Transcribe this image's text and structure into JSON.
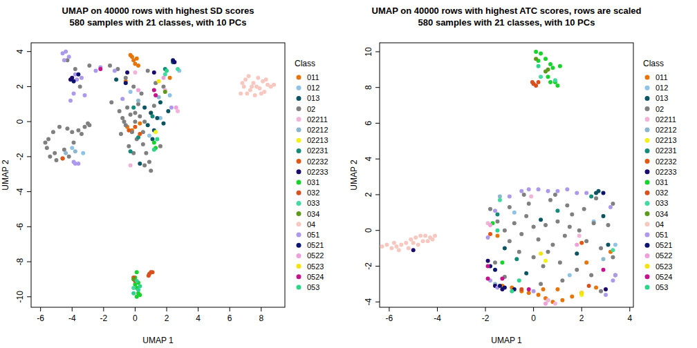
{
  "chart_data": [
    {
      "type": "scatter",
      "title": "UMAP on 40000 rows with highest SD scores",
      "subtitle": "580 samples with 21 classes, with 10 PCs",
      "x_label": "UMAP 1",
      "y_label": "UMAP 2",
      "legend_title": "Class",
      "legend": "right",
      "marker": "circle",
      "xlim": [
        -6.6,
        9.5
      ],
      "ylim": [
        -10.6,
        4.5
      ],
      "xticks": [
        -6,
        -4,
        -2,
        0,
        2,
        4,
        6,
        8
      ],
      "yticks": [
        -10,
        -8,
        -6,
        -4,
        -2,
        0,
        2,
        4
      ],
      "series": [
        {
          "name": "011",
          "color": "#E6750B",
          "x": [
            -0.2,
            -0.1,
            0.1,
            0.0,
            -0.3,
            0.2,
            -0.5,
            -0.2,
            0.3,
            -0.6,
            1.0,
            2.2
          ],
          "y": [
            3.7,
            3.5,
            3.6,
            3.3,
            3.8,
            3.2,
            -0.3,
            -0.5,
            -0.1,
            2.3,
            0.5,
            2.5
          ]
        },
        {
          "name": "012",
          "color": "#8FC3E6",
          "x": [
            -4.0,
            -3.3,
            1.6,
            2.2,
            0.9,
            -0.3,
            2.8
          ],
          "y": [
            -1.5,
            -1.8,
            0.2,
            1.5,
            -0.8,
            1.7,
            2.9
          ]
        },
        {
          "name": "013",
          "color": "#0B5563",
          "x": [
            1.0,
            1.4,
            1.8,
            1.2,
            0.6,
            2.1,
            1.6,
            0.8,
            2.4,
            1.1,
            -1.2,
            0.3
          ],
          "y": [
            0.5,
            0.2,
            -0.1,
            -0.5,
            0.8,
            0.6,
            1.1,
            -0.2,
            3.4,
            -1.0,
            2.4,
            -2.4
          ]
        },
        {
          "name": "02",
          "color": "#808080",
          "x": [
            -5.5,
            -5.6,
            -5.4,
            -5.0,
            -4.6,
            -4.2,
            -5.2,
            -4.8,
            -4.3,
            -4.0,
            -3.6,
            -3.2,
            -3.0,
            -2.9,
            -5.7,
            -5.1,
            -4.5,
            -3.9,
            -3.4,
            -4.3,
            -3.8,
            -2.9,
            -3.5,
            -1.6,
            -1.1,
            -1.0,
            -0.8,
            -0.5,
            -0.3,
            -0.6,
            0.0,
            0.3,
            -0.2,
            0.1,
            -0.4,
            0.5,
            0.7,
            0.9,
            1.0,
            0.6,
            -0.1,
            -0.7,
            0.2,
            0.5,
            1.2,
            -1.5,
            -0.1,
            0.4,
            -0.6,
            0.8,
            1.3,
            1.8,
            1.6,
            -0.9,
            0.0,
            0.6
          ],
          "y": [
            -1.0,
            -1.5,
            -2.0,
            -2.2,
            -2.1,
            -2.0,
            -0.6,
            -0.3,
            -0.4,
            -0.6,
            -0.5,
            -0.3,
            -0.1,
            -0.2,
            -1.2,
            -1.8,
            -1.6,
            -1.2,
            -0.7,
            3.5,
            3.0,
            3.2,
            2.0,
            3.2,
            3.0,
            0.6,
            0.2,
            0.8,
            0.4,
            -0.2,
            0.0,
            0.3,
            -0.6,
            -1.0,
            -1.4,
            -1.3,
            -1.8,
            -2.3,
            -2.8,
            -2.5,
            -1.8,
            0.0,
            1.0,
            -0.6,
            0.9,
            1.1,
            2.0,
            1.6,
            2.5,
            2.9,
            2.2,
            2.0,
            -1.4,
            -0.7,
            0.5,
            0.0
          ]
        },
        {
          "name": "02211",
          "color": "#F2B3D9",
          "x": [
            2.7,
            1.9,
            -0.3,
            0.0
          ],
          "y": [
            0.6,
            1.8,
            -2.5,
            2.8
          ]
        },
        {
          "name": "02212",
          "color": "#8DB6CF",
          "x": [
            -4.4,
            -3.8,
            1.5,
            0.2
          ],
          "y": [
            -1.8,
            -1.7,
            1.4,
            1.2
          ]
        },
        {
          "name": "02213",
          "color": "#F2F21A",
          "x": [
            1.3
          ],
          "y": [
            -0.6
          ]
        },
        {
          "name": "02231",
          "color": "#138A7A",
          "x": [
            -0.3,
            0.2,
            1.1,
            -0.1,
            1.9
          ],
          "y": [
            -1.7,
            -0.9,
            0.3,
            0.8,
            3.0
          ]
        },
        {
          "name": "02232",
          "color": "#E25813",
          "x": [
            -0.4,
            0.0,
            -4.6,
            0.3
          ],
          "y": [
            -0.5,
            -0.3,
            -2.1,
            -0.7
          ]
        },
        {
          "name": "02233",
          "color": "#1A0A6E",
          "x": [
            -4.1,
            -4.0,
            2.5,
            -0.5,
            1.2
          ],
          "y": [
            2.4,
            2.5,
            3.4,
            2.8,
            2.8
          ]
        },
        {
          "name": "031",
          "color": "#19D22E",
          "x": [
            0.1,
            0.0,
            0.2,
            0.1,
            0.2,
            0.3,
            0.0,
            0.1,
            1.3,
            1.2
          ],
          "y": [
            -8.6,
            -8.9,
            -9.2,
            -9.5,
            -9.8,
            -9.9,
            -9.3,
            -10.0,
            -1.5,
            -1.2
          ]
        },
        {
          "name": "032",
          "color": "#D9501E",
          "x": [
            0.9,
            1.0,
            1.1,
            0.85,
            0.0,
            -0.1
          ],
          "y": [
            -8.7,
            -8.6,
            -8.6,
            -8.8,
            -9.1,
            -8.9
          ]
        },
        {
          "name": "033",
          "color": "#44D9A1",
          "x": [
            1.9,
            2.7,
            -0.1
          ],
          "y": [
            2.7,
            3.0,
            -9.5
          ]
        },
        {
          "name": "034",
          "color": "#5D9A1B",
          "x": [
            -0.1,
            1.9
          ],
          "y": [
            -9.0,
            1.7
          ]
        },
        {
          "name": "04",
          "color": "#F7C8C0",
          "x": [
            6.7,
            6.9,
            7.0,
            7.2,
            7.3,
            7.5,
            7.6,
            7.8,
            7.9,
            8.1,
            8.2,
            8.4,
            8.6,
            8.8,
            7.1,
            7.4,
            7.7,
            8.0,
            8.3,
            6.8
          ],
          "y": [
            1.6,
            2.0,
            2.4,
            2.6,
            1.8,
            2.2,
            1.5,
            2.5,
            1.9,
            2.3,
            1.7,
            2.1,
            2.0,
            2.1,
            1.6,
            2.0,
            2.0,
            1.6,
            2.4,
            2.2
          ]
        },
        {
          "name": "051",
          "color": "#AD99EB",
          "x": [
            -4.6,
            -4.4,
            -4.2,
            -4.5,
            -3.8,
            -3.7,
            -3.4,
            -3.9,
            -4.1,
            -3.2,
            -3.8,
            -3.6,
            -3.9,
            -2.2,
            -1.3,
            -0.8,
            2.3,
            -2.5
          ],
          "y": [
            3.9,
            4.0,
            3.7,
            3.5,
            2.7,
            2.4,
            2.5,
            1.6,
            1.2,
            1.5,
            -2.4,
            -2.4,
            -2.3,
            3.1,
            2.9,
            1.3,
            0.8,
            2.9
          ]
        },
        {
          "name": "0521",
          "color": "#0A1470",
          "x": [
            -3.9,
            -3.6,
            2.4,
            -0.6
          ],
          "y": [
            2.3,
            2.7,
            3.5,
            2.2
          ]
        },
        {
          "name": "0522",
          "color": "#EFA0D8",
          "x": [
            0.2,
            2.6,
            1.8
          ],
          "y": [
            1.8,
            0.8,
            2.5
          ]
        },
        {
          "name": "0523",
          "color": "#F5E30F",
          "x": [
            1.5
          ],
          "y": [
            2.3
          ]
        },
        {
          "name": "0524",
          "color": "#C4138C",
          "x": [
            1.3,
            1.2,
            -2.2
          ],
          "y": [
            1.5,
            1.8,
            3.0
          ]
        },
        {
          "name": "053",
          "color": "#2ED38A",
          "x": [
            0.1,
            0.2,
            0.3,
            -0.1,
            1.2,
            1.4,
            2.0
          ],
          "y": [
            -9.1,
            -9.6,
            -9.4,
            -9.8,
            -1.6,
            -1.0,
            2.9
          ]
        }
      ]
    },
    {
      "type": "scatter",
      "title": "UMAP on 40000 rows with highest ATC scores, rows are scaled",
      "subtitle": "580 samples with 21 classes, with 10 PCs",
      "x_label": "UMAP 1",
      "y_label": "UMAP 2",
      "legend_title": "Class",
      "legend": "right",
      "marker": "circle",
      "xlim": [
        -6.4,
        4.15
      ],
      "ylim": [
        -4.3,
        10.5
      ],
      "xticks": [
        -6,
        -4,
        -2,
        0,
        2,
        4
      ],
      "yticks": [
        -4,
        -2,
        0,
        2,
        4,
        6,
        8,
        10
      ],
      "series": [
        {
          "name": "011",
          "color": "#E6750B",
          "x": [
            -0.5,
            -0.2,
            0.2,
            0.5,
            0.8,
            1.2,
            1.6,
            2.0,
            -0.9,
            -1.3,
            2.6,
            0.4,
            2.2,
            -1.5,
            3.2,
            1.0
          ],
          "y": [
            -3.4,
            -3.5,
            -3.6,
            -3.8,
            -4.0,
            -3.9,
            -3.7,
            -3.5,
            -3.2,
            -3.1,
            -3.2,
            -3.3,
            -1.8,
            -0.3,
            -1.2,
            -3.3
          ]
        },
        {
          "name": "012",
          "color": "#8FC3E6",
          "x": [
            0.6,
            3.4,
            2.5,
            -0.8,
            1.5
          ],
          "y": [
            -3.9,
            -0.8,
            0.5,
            1.0,
            -2.5
          ]
        },
        {
          "name": "013",
          "color": "#0B5563",
          "x": [
            2.6,
            2.7,
            3.1,
            -1.2,
            0.3,
            2.9,
            1.8,
            -0.3
          ],
          "y": [
            2.1,
            2.2,
            -0.8,
            -1.0,
            0.6,
            0.8,
            -1.3,
            -2.4
          ]
        },
        {
          "name": "02",
          "color": "#808080",
          "x": [
            -1.5,
            -1.2,
            -1.0,
            -0.8,
            -0.5,
            -0.3,
            0.0,
            0.2,
            0.5,
            0.8,
            1.0,
            1.3,
            1.6,
            1.9,
            2.2,
            2.5,
            2.8,
            3.1,
            3.3,
            -0.6,
            0.0,
            0.4,
            1.1,
            1.8,
            2.4,
            -0.2,
            0.7,
            1.4,
            2.1,
            -1.0,
            -0.4,
            0.9,
            1.2,
            0.3,
            2.8,
            3.4,
            -1.6,
            -1.2,
            0.6,
            1.5,
            2.6,
            3.3,
            -1.8
          ],
          "y": [
            0.5,
            0.0,
            -0.6,
            0.4,
            -0.2,
            0.8,
            0.2,
            -0.5,
            0.3,
            -0.8,
            0.5,
            -0.3,
            0.9,
            0.0,
            -0.6,
            0.4,
            -1.0,
            0.3,
            -1.5,
            -1.2,
            -1.5,
            -2.0,
            -1.8,
            -2.2,
            -2.5,
            1.5,
            1.7,
            1.4,
            1.2,
            1.3,
            2.0,
            2.0,
            -2.8,
            -3.0,
            -3.4,
            -2.5,
            -1.8,
            -2.6,
            -1.2,
            0.2,
            1.8,
            1.5,
            1.2
          ]
        },
        {
          "name": "02211",
          "color": "#F2B3D9",
          "x": [
            -1.9,
            0.6,
            0.9,
            1.9,
            -0.1
          ],
          "y": [
            0.4,
            -3.9,
            -4.1,
            -0.3,
            1.9
          ]
        },
        {
          "name": "02212",
          "color": "#8DB6CF",
          "x": [
            -1.6,
            2.9,
            -1.4
          ],
          "y": [
            -3.0,
            -1.6,
            1.9
          ]
        },
        {
          "name": "02213",
          "color": "#F2F21A",
          "x": [
            0.5,
            2.0
          ],
          "y": [
            -1.7,
            -3.6
          ]
        },
        {
          "name": "02231",
          "color": "#138A7A",
          "x": [
            -1.5,
            2.4,
            -0.7,
            1.0
          ],
          "y": [
            0.9,
            1.9,
            -1.6,
            1.1
          ]
        },
        {
          "name": "02232",
          "color": "#E25813",
          "x": [
            -1.8,
            2.0
          ],
          "y": [
            -0.2,
            -0.7
          ]
        },
        {
          "name": "02233",
          "color": "#1A0A6E",
          "x": [
            -5.0,
            -1.9,
            -1.6,
            -1.3,
            3.0
          ],
          "y": [
            -1.1,
            -1.7,
            -3.1,
            -3.3,
            -3.3
          ]
        },
        {
          "name": "031",
          "color": "#19D22E",
          "x": [
            0.1,
            0.3,
            0.5,
            0.7,
            0.6,
            0.7,
            0.9,
            1.0,
            0.2,
            0.8,
            1.1,
            -1.7,
            -1.3
          ],
          "y": [
            10.0,
            9.9,
            9.6,
            9.3,
            8.6,
            8.3,
            8.3,
            8.1,
            9.5,
            9.1,
            9.2,
            0.4,
            -1.8
          ]
        },
        {
          "name": "032",
          "color": "#D9501E",
          "x": [
            0.0,
            0.1,
            0.2,
            -0.05,
            -0.5,
            2.3
          ],
          "y": [
            8.2,
            8.1,
            8.3,
            8.3,
            -3.3,
            -3.1
          ]
        },
        {
          "name": "033",
          "color": "#44D9A1",
          "x": [
            0.3,
            0.9,
            -1.4,
            3.3
          ],
          "y": [
            8.6,
            8.4,
            1.7,
            -1.1
          ]
        },
        {
          "name": "034",
          "color": "#5D9A1B",
          "x": [
            0.6,
            0.5,
            0.1
          ],
          "y": [
            9.0,
            8.9,
            9.6
          ]
        },
        {
          "name": "04",
          "color": "#F7C8C0",
          "x": [
            -6.3,
            -6.1,
            -5.9,
            -5.7,
            -5.5,
            -5.3,
            -5.1,
            -4.9,
            -4.7,
            -4.5,
            -4.3,
            -4.1,
            -5.6,
            -5.2,
            -4.8,
            -4.6,
            -5.0,
            -5.8,
            -4.4,
            -4.2
          ],
          "y": [
            -0.9,
            -0.8,
            -1.0,
            -0.9,
            -0.8,
            -0.7,
            -0.5,
            -0.4,
            -0.3,
            -0.3,
            -0.4,
            -0.3,
            -1.1,
            -1.0,
            -0.8,
            -0.6,
            -0.7,
            -0.7,
            -0.6,
            -0.5
          ]
        },
        {
          "name": "051",
          "color": "#AD99EB",
          "x": [
            -0.5,
            -0.2,
            0.2,
            0.6,
            1.0,
            1.4,
            1.8,
            2.2,
            -1.0,
            -1.6,
            3.2,
            3.4,
            3.3,
            3.0,
            -1.8,
            -1.9,
            -1.5,
            0.0
          ],
          "y": [
            2.2,
            2.3,
            2.3,
            2.2,
            2.2,
            2.3,
            2.1,
            2.1,
            1.9,
            1.1,
            1.3,
            -2.5,
            -2.8,
            -3.6,
            -2.8,
            -0.4,
            -3.2,
            -3.4
          ]
        },
        {
          "name": "0521",
          "color": "#0A1470",
          "x": [
            -1.8,
            -1.6,
            -1.4,
            -1.2,
            -0.8,
            2.9
          ],
          "y": [
            -2.0,
            -2.2,
            -3.1,
            -3.2,
            -3.3,
            2.1
          ]
        },
        {
          "name": "0522",
          "color": "#EFA0D8",
          "x": [
            -1.8,
            0.5,
            1.8
          ],
          "y": [
            0.3,
            -4.1,
            -0.8
          ]
        },
        {
          "name": "0523",
          "color": "#F5E30F",
          "x": [
            0.3,
            2.0
          ],
          "y": [
            -1.3,
            -3.5
          ]
        },
        {
          "name": "0524",
          "color": "#C4138C",
          "x": [
            -1.9,
            -1.9,
            -1.3,
            2.9,
            -0.2
          ],
          "y": [
            -2.0,
            -2.7,
            -2.7,
            -2.2,
            -3.3
          ]
        },
        {
          "name": "053",
          "color": "#2ED38A",
          "x": [
            0.2,
            -1.5,
            -0.9,
            -0.6
          ],
          "y": [
            9.2,
            0.0,
            -3.4,
            -2.8
          ]
        }
      ]
    }
  ]
}
